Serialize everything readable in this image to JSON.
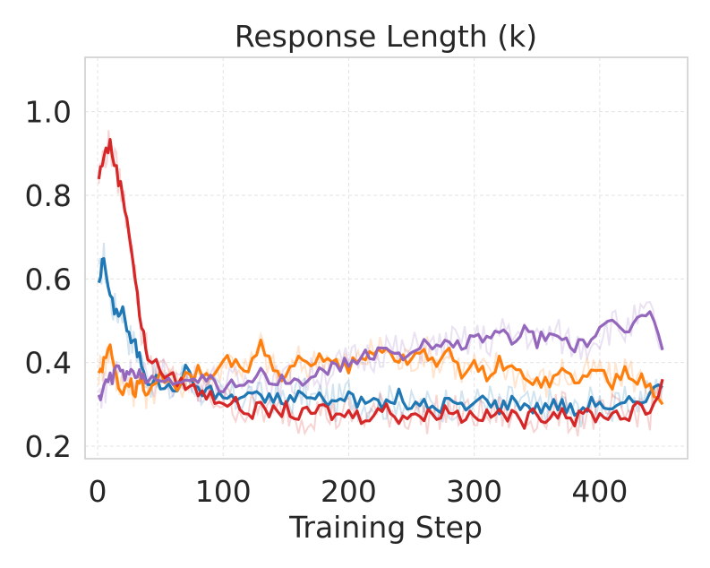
{
  "chart_data": {
    "type": "line",
    "title": "Response Length (k)",
    "xlabel": "Training Step",
    "ylabel": "",
    "xlim": [
      -10,
      470
    ],
    "ylim": [
      0.17,
      1.13
    ],
    "xticks": [
      0,
      100,
      200,
      300,
      400
    ],
    "xtick_labels": [
      "0",
      "100",
      "200",
      "300",
      "400"
    ],
    "yticks": [
      0.2,
      0.4,
      0.6,
      0.8,
      1.0
    ],
    "ytick_labels": [
      "0.2",
      "0.4",
      "0.6",
      "0.8",
      "1.0"
    ],
    "grid": true,
    "series": [
      {
        "name": "blue",
        "color": "#1f77b4",
        "x": [
          1,
          5,
          10,
          15,
          20,
          25,
          30,
          35,
          40,
          50,
          60,
          70,
          80,
          90,
          100,
          110,
          120,
          130,
          140,
          150,
          160,
          170,
          180,
          190,
          200,
          210,
          220,
          230,
          240,
          250,
          260,
          270,
          280,
          290,
          300,
          310,
          320,
          330,
          340,
          350,
          360,
          370,
          380,
          390,
          400,
          410,
          420,
          430,
          440,
          450
        ],
        "y": [
          0.6,
          0.65,
          0.55,
          0.52,
          0.53,
          0.46,
          0.44,
          0.4,
          0.36,
          0.35,
          0.33,
          0.38,
          0.34,
          0.33,
          0.32,
          0.31,
          0.33,
          0.31,
          0.32,
          0.3,
          0.33,
          0.31,
          0.32,
          0.3,
          0.33,
          0.3,
          0.31,
          0.3,
          0.32,
          0.29,
          0.3,
          0.29,
          0.31,
          0.29,
          0.3,
          0.32,
          0.29,
          0.31,
          0.3,
          0.29,
          0.3,
          0.3,
          0.28,
          0.3,
          0.31,
          0.28,
          0.3,
          0.31,
          0.33,
          0.34
        ],
        "smoothed": [
          0.6,
          0.65,
          0.55,
          0.52,
          0.53,
          0.46,
          0.44,
          0.4,
          0.36,
          0.35,
          0.33,
          0.38,
          0.34,
          0.33,
          0.32,
          0.31,
          0.33,
          0.31,
          0.32,
          0.3,
          0.33,
          0.31,
          0.32,
          0.3,
          0.33,
          0.3,
          0.31,
          0.3,
          0.32,
          0.29,
          0.3,
          0.29,
          0.31,
          0.29,
          0.3,
          0.32,
          0.29,
          0.31,
          0.3,
          0.29,
          0.3,
          0.3,
          0.28,
          0.3,
          0.31,
          0.28,
          0.3,
          0.31,
          0.33,
          0.34
        ]
      },
      {
        "name": "orange",
        "color": "#ff7f0e",
        "x": [
          1,
          5,
          10,
          15,
          20,
          25,
          30,
          35,
          40,
          50,
          60,
          70,
          80,
          90,
          100,
          110,
          120,
          130,
          140,
          150,
          160,
          170,
          180,
          190,
          200,
          210,
          220,
          230,
          240,
          250,
          260,
          270,
          280,
          290,
          300,
          310,
          320,
          330,
          340,
          350,
          360,
          370,
          380,
          390,
          400,
          410,
          420,
          430,
          440,
          450
        ],
        "y": [
          0.38,
          0.4,
          0.43,
          0.36,
          0.34,
          0.36,
          0.33,
          0.36,
          0.32,
          0.37,
          0.34,
          0.36,
          0.38,
          0.35,
          0.41,
          0.4,
          0.38,
          0.44,
          0.38,
          0.36,
          0.4,
          0.39,
          0.42,
          0.4,
          0.39,
          0.41,
          0.42,
          0.44,
          0.4,
          0.41,
          0.43,
          0.4,
          0.42,
          0.38,
          0.39,
          0.37,
          0.4,
          0.38,
          0.37,
          0.36,
          0.35,
          0.38,
          0.36,
          0.37,
          0.38,
          0.35,
          0.39,
          0.36,
          0.35,
          0.3
        ],
        "smoothed": [
          0.38,
          0.4,
          0.43,
          0.36,
          0.34,
          0.36,
          0.33,
          0.36,
          0.32,
          0.37,
          0.34,
          0.36,
          0.38,
          0.35,
          0.41,
          0.4,
          0.38,
          0.44,
          0.38,
          0.36,
          0.4,
          0.39,
          0.42,
          0.4,
          0.39,
          0.41,
          0.42,
          0.44,
          0.4,
          0.41,
          0.43,
          0.4,
          0.42,
          0.38,
          0.39,
          0.37,
          0.4,
          0.38,
          0.37,
          0.36,
          0.35,
          0.38,
          0.36,
          0.37,
          0.38,
          0.35,
          0.39,
          0.36,
          0.35,
          0.3
        ]
      },
      {
        "name": "red",
        "color": "#d62728",
        "x": [
          1,
          5,
          10,
          15,
          20,
          25,
          30,
          35,
          40,
          50,
          60,
          70,
          80,
          90,
          100,
          110,
          120,
          130,
          140,
          150,
          160,
          170,
          180,
          190,
          200,
          210,
          220,
          230,
          240,
          250,
          260,
          270,
          280,
          290,
          300,
          310,
          320,
          330,
          340,
          350,
          360,
          370,
          380,
          390,
          400,
          410,
          420,
          430,
          440,
          450
        ],
        "y": [
          0.84,
          0.9,
          0.92,
          0.86,
          0.8,
          0.72,
          0.6,
          0.48,
          0.42,
          0.38,
          0.36,
          0.35,
          0.33,
          0.32,
          0.31,
          0.3,
          0.28,
          0.29,
          0.28,
          0.29,
          0.27,
          0.28,
          0.29,
          0.27,
          0.28,
          0.27,
          0.28,
          0.29,
          0.27,
          0.28,
          0.27,
          0.28,
          0.29,
          0.27,
          0.28,
          0.27,
          0.28,
          0.27,
          0.26,
          0.28,
          0.27,
          0.29,
          0.26,
          0.28,
          0.27,
          0.28,
          0.27,
          0.29,
          0.28,
          0.36
        ],
        "smoothed": [
          0.84,
          0.9,
          0.92,
          0.86,
          0.8,
          0.72,
          0.6,
          0.48,
          0.42,
          0.38,
          0.36,
          0.35,
          0.33,
          0.32,
          0.31,
          0.3,
          0.28,
          0.29,
          0.28,
          0.29,
          0.27,
          0.28,
          0.29,
          0.27,
          0.28,
          0.27,
          0.28,
          0.29,
          0.27,
          0.28,
          0.27,
          0.28,
          0.29,
          0.27,
          0.28,
          0.27,
          0.28,
          0.27,
          0.26,
          0.28,
          0.27,
          0.29,
          0.26,
          0.28,
          0.27,
          0.28,
          0.27,
          0.29,
          0.28,
          0.36
        ]
      },
      {
        "name": "purple",
        "color": "#9467bd",
        "x": [
          1,
          5,
          10,
          15,
          20,
          25,
          30,
          35,
          40,
          50,
          60,
          70,
          80,
          90,
          100,
          110,
          120,
          130,
          140,
          150,
          160,
          170,
          180,
          190,
          200,
          210,
          220,
          230,
          240,
          250,
          260,
          270,
          280,
          290,
          300,
          310,
          320,
          330,
          340,
          350,
          360,
          370,
          380,
          390,
          400,
          410,
          420,
          430,
          440,
          450
        ],
        "y": [
          0.32,
          0.34,
          0.36,
          0.38,
          0.37,
          0.38,
          0.36,
          0.37,
          0.35,
          0.37,
          0.36,
          0.37,
          0.35,
          0.36,
          0.34,
          0.35,
          0.36,
          0.37,
          0.35,
          0.36,
          0.35,
          0.37,
          0.38,
          0.39,
          0.4,
          0.41,
          0.42,
          0.44,
          0.42,
          0.43,
          0.44,
          0.43,
          0.45,
          0.44,
          0.46,
          0.45,
          0.47,
          0.46,
          0.48,
          0.45,
          0.47,
          0.46,
          0.44,
          0.45,
          0.47,
          0.49,
          0.48,
          0.5,
          0.52,
          0.43
        ],
        "smoothed": [
          0.32,
          0.34,
          0.36,
          0.38,
          0.37,
          0.38,
          0.36,
          0.37,
          0.35,
          0.37,
          0.36,
          0.37,
          0.35,
          0.36,
          0.34,
          0.35,
          0.36,
          0.37,
          0.35,
          0.36,
          0.35,
          0.37,
          0.38,
          0.39,
          0.4,
          0.41,
          0.42,
          0.44,
          0.42,
          0.43,
          0.44,
          0.43,
          0.45,
          0.44,
          0.46,
          0.45,
          0.47,
          0.46,
          0.48,
          0.45,
          0.47,
          0.46,
          0.44,
          0.45,
          0.47,
          0.49,
          0.48,
          0.5,
          0.52,
          0.43
        ]
      }
    ]
  }
}
